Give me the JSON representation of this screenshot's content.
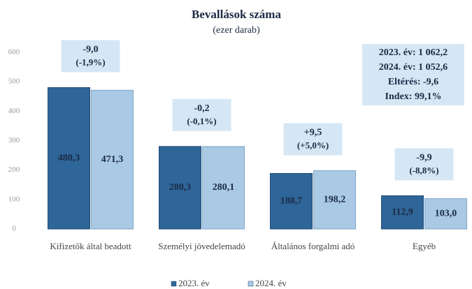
{
  "chart_data": {
    "type": "bar",
    "title": "Bevallások száma",
    "subtitle": "(ezer darab)",
    "categories": [
      "Kifizetők által beadott",
      "Személyi jövedelemadó",
      "Általános forgalmi adó",
      "Egyéb"
    ],
    "series": [
      {
        "name": "2023. év",
        "color": "#2f6699",
        "values": [
          480.3,
          280.3,
          188.7,
          112.9
        ],
        "value_labels": [
          "480,3",
          "280,3",
          "188,7",
          "112,9"
        ]
      },
      {
        "name": "2024. év",
        "color": "#a9c9e4",
        "values": [
          471.3,
          280.1,
          198.2,
          103.0
        ],
        "value_labels": [
          "471,3",
          "280,1",
          "198,2",
          "103,0"
        ]
      }
    ],
    "ylim": [
      0,
      600
    ],
    "yticks": [
      0,
      100,
      200,
      300,
      400,
      500,
      600
    ],
    "grid": false,
    "annotations": [
      {
        "text": "-9,0",
        "subtext": "(-1,9%)"
      },
      {
        "text": "-0,2",
        "subtext": "(-0,1%)"
      },
      {
        "text": "+9,5",
        "subtext": "(+5,0%)"
      },
      {
        "text": "-9,9",
        "subtext": "(-8,8%)"
      }
    ],
    "summary": [
      "2023. év: 1 062,2",
      "2024. év: 1 052,6",
      "Eltérés: -9,6",
      "Index: 99,1%"
    ],
    "legend": "bottom"
  }
}
